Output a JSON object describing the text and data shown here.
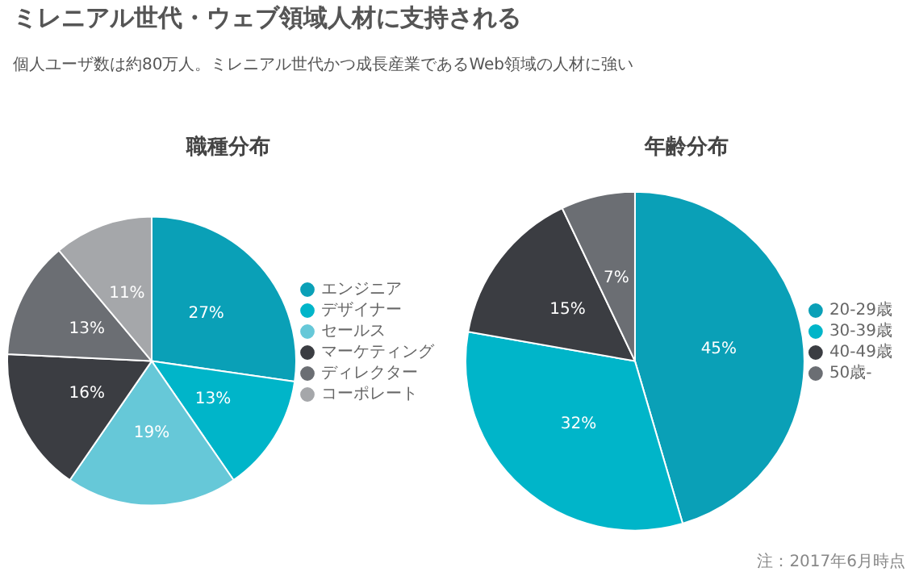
{
  "chart_data": [
    {
      "type": "other",
      "title": "ミレニアル世代・ウェブ領域人材に支持される",
      "subtitle": "個人ユーザ数は約80万人。ミレニアル世代かつ成長産業であるWeb領域の人材に強い"
    },
    {
      "type": "pie",
      "title": "職種分布",
      "categories": [
        "エンジニア",
        "デザイナー",
        "セールス",
        "マーケティング",
        "ディレクター",
        "コーポレート"
      ],
      "values": [
        27,
        13,
        19,
        16,
        13,
        11
      ],
      "value_labels": [
        "27%",
        "13%",
        "19%",
        "16%",
        "13%",
        "11%"
      ],
      "colors": [
        "#0aa0b7",
        "#00b5c9",
        "#66c8d8",
        "#3b3d42",
        "#6b6e73",
        "#a5a7aa"
      ],
      "legend": "right"
    },
    {
      "type": "pie",
      "title": "年齢分布",
      "categories": [
        "20-29歳",
        "30-39歳",
        "40-49歳",
        "50歳-"
      ],
      "values": [
        45,
        32,
        15,
        7
      ],
      "value_labels": [
        "45%",
        "32%",
        "15%",
        "7%"
      ],
      "colors": [
        "#0aa0b7",
        "#00b5c9",
        "#3b3d42",
        "#6b6e73"
      ],
      "legend": "right",
      "annotations": [
        "注：2017年6月時点"
      ]
    }
  ]
}
